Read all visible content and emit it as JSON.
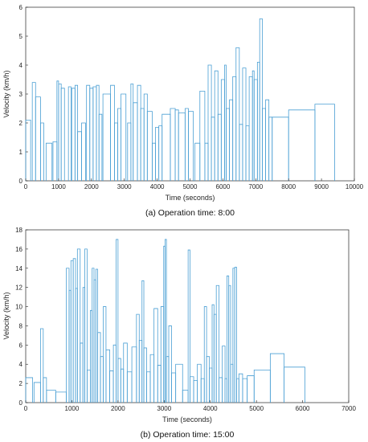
{
  "colors": {
    "line": "#4a9fd4",
    "axis": "#262626"
  },
  "chart_data": [
    {
      "type": "line",
      "title": "",
      "caption": "(a) Operation time: 8:00",
      "xlabel": "Time (seconds)",
      "ylabel": "Velocity (km/h)",
      "xlim": [
        0,
        10000
      ],
      "ylim": [
        0,
        6
      ],
      "xticks": [
        0,
        1000,
        2000,
        3000,
        4000,
        5000,
        6000,
        7000,
        8000,
        9000,
        10000
      ],
      "yticks": [
        0,
        1,
        2,
        3,
        4,
        5,
        6
      ],
      "grid": false,
      "legend": "none",
      "segments": [
        [
          0,
          150,
          2.1
        ],
        [
          200,
          300,
          3.4
        ],
        [
          300,
          450,
          2.9
        ],
        [
          450,
          550,
          2.0
        ],
        [
          620,
          800,
          1.3
        ],
        [
          830,
          950,
          1.35
        ],
        [
          950,
          1000,
          3.45
        ],
        [
          1000,
          1080,
          3.35
        ],
        [
          1080,
          1180,
          3.2
        ],
        [
          1300,
          1380,
          3.25
        ],
        [
          1400,
          1500,
          3.2
        ],
        [
          1500,
          1580,
          3.3
        ],
        [
          1580,
          1700,
          1.7
        ],
        [
          1700,
          1820,
          2.0
        ],
        [
          1850,
          1950,
          3.3
        ],
        [
          1950,
          2050,
          3.2
        ],
        [
          2050,
          2150,
          3.25
        ],
        [
          2150,
          2230,
          3.3
        ],
        [
          2230,
          2320,
          2.3
        ],
        [
          2350,
          2580,
          3.0
        ],
        [
          2580,
          2700,
          3.3
        ],
        [
          2700,
          2800,
          2.0
        ],
        [
          2800,
          2900,
          2.5
        ],
        [
          2900,
          3050,
          3.0
        ],
        [
          3100,
          3200,
          2.0
        ],
        [
          3200,
          3270,
          3.35
        ],
        [
          3270,
          3400,
          2.7
        ],
        [
          3400,
          3500,
          3.3
        ],
        [
          3500,
          3600,
          2.5
        ],
        [
          3600,
          3700,
          3.0
        ],
        [
          3700,
          3850,
          2.4
        ],
        [
          3850,
          3950,
          1.3
        ],
        [
          3950,
          4050,
          1.85
        ],
        [
          4050,
          4150,
          1.9
        ],
        [
          4150,
          4400,
          2.3
        ],
        [
          4400,
          4550,
          2.5
        ],
        [
          4550,
          4650,
          2.45
        ],
        [
          4650,
          4850,
          2.35
        ],
        [
          4850,
          4950,
          2.5
        ],
        [
          4950,
          5100,
          2.4
        ],
        [
          5150,
          5300,
          1.3
        ],
        [
          5300,
          5450,
          3.1
        ],
        [
          5450,
          5550,
          1.3
        ],
        [
          5550,
          5650,
          4.0
        ],
        [
          5650,
          5750,
          2.2
        ],
        [
          5750,
          5850,
          3.8
        ],
        [
          5850,
          5950,
          2.3
        ],
        [
          5950,
          6050,
          3.5
        ],
        [
          6050,
          6100,
          4.0
        ],
        [
          6100,
          6200,
          2.5
        ],
        [
          6200,
          6300,
          2.8
        ],
        [
          6300,
          6400,
          3.6
        ],
        [
          6400,
          6500,
          4.6
        ],
        [
          6500,
          6600,
          1.95
        ],
        [
          6600,
          6700,
          3.9
        ],
        [
          6700,
          6800,
          1.9
        ],
        [
          6800,
          6900,
          3.6
        ],
        [
          6900,
          6950,
          3.8
        ],
        [
          6950,
          7050,
          3.5
        ],
        [
          7050,
          7120,
          4.1
        ],
        [
          7120,
          7200,
          5.6
        ],
        [
          7200,
          7300,
          2.5
        ],
        [
          7300,
          7400,
          2.8
        ],
        [
          7400,
          7500,
          2.2
        ],
        [
          7500,
          8000,
          2.2
        ],
        [
          8000,
          8800,
          2.45
        ],
        [
          8800,
          9400,
          2.65
        ]
      ]
    },
    {
      "type": "line",
      "title": "",
      "caption": "(b) Operation time: 15:00",
      "xlabel": "Time (seconds)",
      "ylabel": "Velocity (km/h)",
      "xlim": [
        0,
        7000
      ],
      "ylim": [
        0,
        18
      ],
      "xticks": [
        0,
        1000,
        2000,
        3000,
        4000,
        5000,
        6000,
        7000
      ],
      "yticks": [
        0,
        2,
        4,
        6,
        8,
        10,
        12,
        14,
        16,
        18
      ],
      "grid": false,
      "legend": "none",
      "segments": [
        [
          0,
          150,
          2.6
        ],
        [
          180,
          320,
          2.1
        ],
        [
          320,
          380,
          7.7
        ],
        [
          380,
          450,
          2.6
        ],
        [
          450,
          650,
          1.3
        ],
        [
          650,
          880,
          1.1
        ],
        [
          880,
          940,
          14.0
        ],
        [
          940,
          980,
          11.7
        ],
        [
          980,
          1030,
          14.8
        ],
        [
          1030,
          1080,
          15.0
        ],
        [
          1080,
          1120,
          11.9
        ],
        [
          1120,
          1180,
          16.0
        ],
        [
          1180,
          1240,
          6.2
        ],
        [
          1240,
          1280,
          12.0
        ],
        [
          1280,
          1330,
          16.0
        ],
        [
          1330,
          1400,
          3.4
        ],
        [
          1400,
          1440,
          9.6
        ],
        [
          1440,
          1480,
          14.0
        ],
        [
          1480,
          1520,
          12.8
        ],
        [
          1520,
          1560,
          13.9
        ],
        [
          1560,
          1620,
          7.3
        ],
        [
          1620,
          1680,
          4.8
        ],
        [
          1680,
          1740,
          10.0
        ],
        [
          1740,
          1820,
          5.5
        ],
        [
          1820,
          1900,
          3.3
        ],
        [
          1900,
          1960,
          6.0
        ],
        [
          1960,
          2000,
          17.0
        ],
        [
          2000,
          2060,
          4.6
        ],
        [
          2060,
          2120,
          3.5
        ],
        [
          2120,
          2200,
          6.2
        ],
        [
          2200,
          2300,
          3.2
        ],
        [
          2300,
          2400,
          5.8
        ],
        [
          2400,
          2460,
          9.2
        ],
        [
          2460,
          2520,
          6.5
        ],
        [
          2520,
          2560,
          12.7
        ],
        [
          2560,
          2620,
          5.7
        ],
        [
          2620,
          2700,
          3.2
        ],
        [
          2700,
          2780,
          5.0
        ],
        [
          2780,
          2860,
          9.8
        ],
        [
          2860,
          2930,
          3.9
        ],
        [
          2930,
          2990,
          10.0
        ],
        [
          2990,
          3020,
          16.3
        ],
        [
          3020,
          3050,
          17.0
        ],
        [
          3050,
          3100,
          4.8
        ],
        [
          3100,
          3160,
          8.0
        ],
        [
          3160,
          3250,
          3.1
        ],
        [
          3250,
          3400,
          4.0
        ],
        [
          3400,
          3520,
          1.3
        ],
        [
          3520,
          3560,
          15.9
        ],
        [
          3560,
          3640,
          2.7
        ],
        [
          3640,
          3720,
          2.3
        ],
        [
          3720,
          3800,
          4.0
        ],
        [
          3800,
          3870,
          2.5
        ],
        [
          3870,
          3920,
          10.0
        ],
        [
          3920,
          3980,
          4.8
        ],
        [
          3980,
          4040,
          3.6
        ],
        [
          4040,
          4080,
          10.2
        ],
        [
          4080,
          4130,
          9.2
        ],
        [
          4130,
          4190,
          12.2
        ],
        [
          4190,
          4260,
          2.6
        ],
        [
          4260,
          4320,
          5.9
        ],
        [
          4320,
          4360,
          2.5
        ],
        [
          4360,
          4400,
          13.2
        ],
        [
          4400,
          4440,
          12.2
        ],
        [
          4440,
          4490,
          4.0
        ],
        [
          4490,
          4530,
          14.0
        ],
        [
          4530,
          4570,
          14.1
        ],
        [
          4570,
          4620,
          2.5
        ],
        [
          4620,
          4700,
          3.0
        ],
        [
          4700,
          4800,
          2.5
        ],
        [
          4800,
          4950,
          2.8
        ],
        [
          4950,
          5300,
          3.4
        ],
        [
          5300,
          5600,
          5.1
        ],
        [
          5600,
          6050,
          3.7
        ]
      ]
    }
  ]
}
